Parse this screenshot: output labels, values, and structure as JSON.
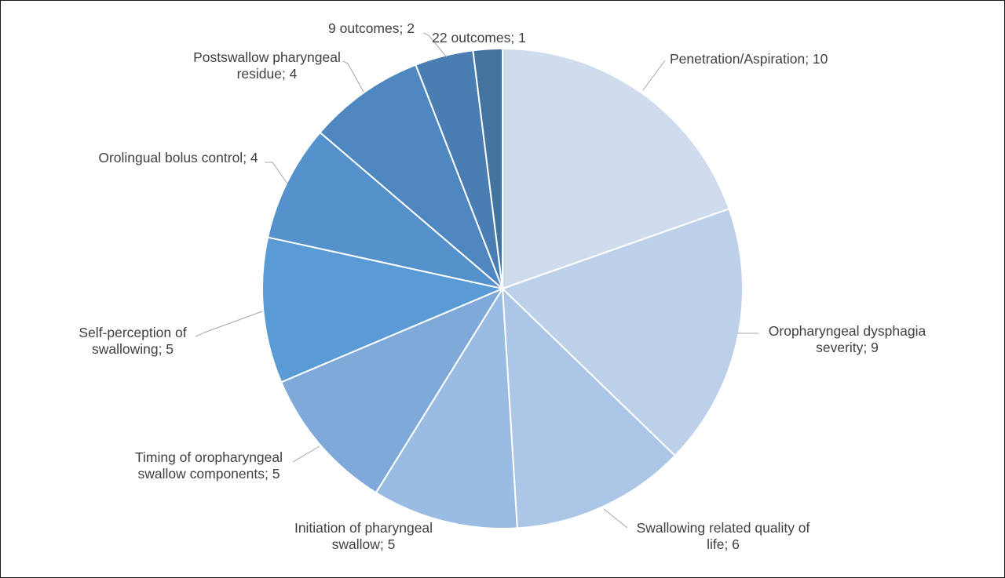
{
  "chart_data": {
    "type": "pie",
    "title": "",
    "legend": "none",
    "start_angle_deg": 0,
    "direction": "clockwise",
    "categories": [
      "Penetration/Aspiration",
      "Oropharyngeal dysphagia severity",
      "Swallowing related quality of life",
      "Initiation of pharyngeal swallow",
      "Timing of oropharyngeal swallow components",
      "Self-perception of swallowing",
      "Orolingual bolus control",
      "Postswallow pharyngeal residue",
      "9 outcomes",
      "22 outcomes"
    ],
    "values": [
      10,
      9,
      6,
      5,
      5,
      5,
      4,
      4,
      2,
      1
    ],
    "colors": [
      "#cfdcee",
      "#bdd0e9",
      "#abc6e6",
      "#9bbce2",
      "#7fa9d9",
      "#5b9bd5",
      "#5592cc",
      "#4f88c0",
      "#4a7eb3",
      "#43739f"
    ],
    "labels": [
      {
        "lines": [
          "Penetration/Aspiration; 10"
        ]
      },
      {
        "lines": [
          "Oropharyngeal dysphagia",
          "severity; 9"
        ]
      },
      {
        "lines": [
          "Swallowing related quality of",
          "life; 6"
        ]
      },
      {
        "lines": [
          "Initiation of pharyngeal",
          "swallow; 5"
        ]
      },
      {
        "lines": [
          "Timing of oropharyngeal",
          "swallow components; 5"
        ]
      },
      {
        "lines": [
          "Self-perception of",
          "swallowing; 5"
        ]
      },
      {
        "lines": [
          "Orolingual bolus control; 4"
        ]
      },
      {
        "lines": [
          "Postswallow pharyngeal",
          "residue; 4"
        ]
      },
      {
        "lines": [
          "9 outcomes; 2"
        ]
      },
      {
        "lines": [
          "22 outcomes; 1"
        ]
      }
    ]
  }
}
